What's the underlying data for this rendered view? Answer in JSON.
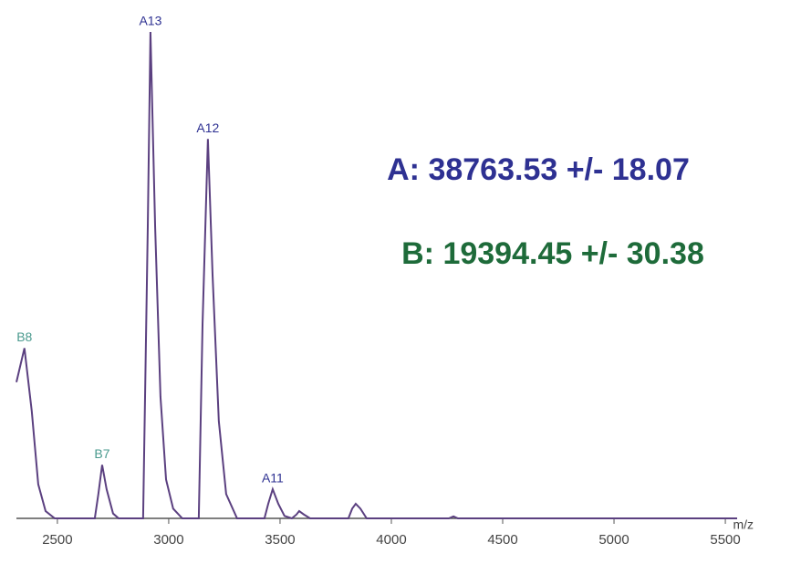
{
  "chart_data": {
    "type": "line",
    "x_label": "m/z",
    "xlim": [
      2316,
      5553
    ],
    "xticks": [
      2500,
      3000,
      3500,
      4000,
      4500,
      5000,
      5500
    ],
    "ylim": [
      0,
      100
    ],
    "series": [
      {
        "color": "#5b4080",
        "x": [
          2316,
          2352,
          2385,
          2414,
          2447,
          2488,
          2668,
          2684,
          2701,
          2721,
          2750,
          2775,
          2885,
          2906,
          2918,
          2939,
          2963,
          2988,
          3020,
          3061,
          3135,
          3152,
          3176,
          3197,
          3225,
          3258,
          3307,
          3430,
          3447,
          3467,
          3492,
          3520,
          3553,
          3574,
          3586,
          3607,
          3635,
          3807,
          3824,
          3840,
          3861,
          3889,
          4258,
          4279,
          4299,
          5553
        ],
        "values": [
          28,
          35,
          22,
          7,
          1.5,
          0,
          0,
          5,
          11,
          6,
          1,
          0,
          0,
          60,
          100,
          60,
          25,
          8,
          2,
          0,
          0,
          40,
          78,
          50,
          20,
          5,
          0,
          0,
          3,
          6,
          3,
          0.5,
          0,
          0.8,
          1.5,
          0.8,
          0,
          0,
          2,
          3,
          2,
          0,
          0,
          0.4,
          0,
          0
        ]
      }
    ],
    "peak_labels": [
      {
        "text": "B8",
        "x": 2352,
        "y": 35,
        "color": "#4a9a8e"
      },
      {
        "text": "B7",
        "x": 2701,
        "y": 11,
        "color": "#4a9a8e"
      },
      {
        "text": "A13",
        "x": 2918,
        "y": 100,
        "color": "#2e3192"
      },
      {
        "text": "A12",
        "x": 3176,
        "y": 78,
        "color": "#2e3192"
      },
      {
        "text": "A11",
        "x": 3467,
        "y": 6,
        "color": "#2e3192"
      }
    ],
    "annotations": [
      {
        "text": "A: 38763.53 +/- 18.07",
        "color": "#2e3192"
      },
      {
        "text": "B: 19394.45 +/- 30.38",
        "color": "#1e6b3a"
      }
    ]
  }
}
